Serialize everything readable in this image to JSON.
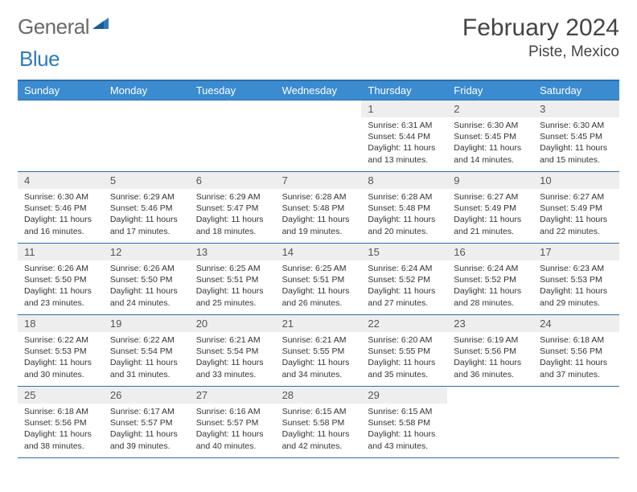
{
  "brand": {
    "part1": "General",
    "part2": "Blue"
  },
  "title": "February 2024",
  "location": "Piste, Mexico",
  "colors": {
    "header_bg": "#3b8bd0",
    "header_border": "#2d6ea8",
    "daynum_bg": "#eeeeee",
    "text": "#333333",
    "brand_gray": "#6a6a6a",
    "brand_blue": "#2d7bc0"
  },
  "day_names": [
    "Sunday",
    "Monday",
    "Tuesday",
    "Wednesday",
    "Thursday",
    "Friday",
    "Saturday"
  ],
  "weeks": [
    [
      {
        "n": "",
        "sr": "",
        "ss": "",
        "dl": ""
      },
      {
        "n": "",
        "sr": "",
        "ss": "",
        "dl": ""
      },
      {
        "n": "",
        "sr": "",
        "ss": "",
        "dl": ""
      },
      {
        "n": "",
        "sr": "",
        "ss": "",
        "dl": ""
      },
      {
        "n": "1",
        "sr": "Sunrise: 6:31 AM",
        "ss": "Sunset: 5:44 PM",
        "dl": "Daylight: 11 hours and 13 minutes."
      },
      {
        "n": "2",
        "sr": "Sunrise: 6:30 AM",
        "ss": "Sunset: 5:45 PM",
        "dl": "Daylight: 11 hours and 14 minutes."
      },
      {
        "n": "3",
        "sr": "Sunrise: 6:30 AM",
        "ss": "Sunset: 5:45 PM",
        "dl": "Daylight: 11 hours and 15 minutes."
      }
    ],
    [
      {
        "n": "4",
        "sr": "Sunrise: 6:30 AM",
        "ss": "Sunset: 5:46 PM",
        "dl": "Daylight: 11 hours and 16 minutes."
      },
      {
        "n": "5",
        "sr": "Sunrise: 6:29 AM",
        "ss": "Sunset: 5:46 PM",
        "dl": "Daylight: 11 hours and 17 minutes."
      },
      {
        "n": "6",
        "sr": "Sunrise: 6:29 AM",
        "ss": "Sunset: 5:47 PM",
        "dl": "Daylight: 11 hours and 18 minutes."
      },
      {
        "n": "7",
        "sr": "Sunrise: 6:28 AM",
        "ss": "Sunset: 5:48 PM",
        "dl": "Daylight: 11 hours and 19 minutes."
      },
      {
        "n": "8",
        "sr": "Sunrise: 6:28 AM",
        "ss": "Sunset: 5:48 PM",
        "dl": "Daylight: 11 hours and 20 minutes."
      },
      {
        "n": "9",
        "sr": "Sunrise: 6:27 AM",
        "ss": "Sunset: 5:49 PM",
        "dl": "Daylight: 11 hours and 21 minutes."
      },
      {
        "n": "10",
        "sr": "Sunrise: 6:27 AM",
        "ss": "Sunset: 5:49 PM",
        "dl": "Daylight: 11 hours and 22 minutes."
      }
    ],
    [
      {
        "n": "11",
        "sr": "Sunrise: 6:26 AM",
        "ss": "Sunset: 5:50 PM",
        "dl": "Daylight: 11 hours and 23 minutes."
      },
      {
        "n": "12",
        "sr": "Sunrise: 6:26 AM",
        "ss": "Sunset: 5:50 PM",
        "dl": "Daylight: 11 hours and 24 minutes."
      },
      {
        "n": "13",
        "sr": "Sunrise: 6:25 AM",
        "ss": "Sunset: 5:51 PM",
        "dl": "Daylight: 11 hours and 25 minutes."
      },
      {
        "n": "14",
        "sr": "Sunrise: 6:25 AM",
        "ss": "Sunset: 5:51 PM",
        "dl": "Daylight: 11 hours and 26 minutes."
      },
      {
        "n": "15",
        "sr": "Sunrise: 6:24 AM",
        "ss": "Sunset: 5:52 PM",
        "dl": "Daylight: 11 hours and 27 minutes."
      },
      {
        "n": "16",
        "sr": "Sunrise: 6:24 AM",
        "ss": "Sunset: 5:52 PM",
        "dl": "Daylight: 11 hours and 28 minutes."
      },
      {
        "n": "17",
        "sr": "Sunrise: 6:23 AM",
        "ss": "Sunset: 5:53 PM",
        "dl": "Daylight: 11 hours and 29 minutes."
      }
    ],
    [
      {
        "n": "18",
        "sr": "Sunrise: 6:22 AM",
        "ss": "Sunset: 5:53 PM",
        "dl": "Daylight: 11 hours and 30 minutes."
      },
      {
        "n": "19",
        "sr": "Sunrise: 6:22 AM",
        "ss": "Sunset: 5:54 PM",
        "dl": "Daylight: 11 hours and 31 minutes."
      },
      {
        "n": "20",
        "sr": "Sunrise: 6:21 AM",
        "ss": "Sunset: 5:54 PM",
        "dl": "Daylight: 11 hours and 33 minutes."
      },
      {
        "n": "21",
        "sr": "Sunrise: 6:21 AM",
        "ss": "Sunset: 5:55 PM",
        "dl": "Daylight: 11 hours and 34 minutes."
      },
      {
        "n": "22",
        "sr": "Sunrise: 6:20 AM",
        "ss": "Sunset: 5:55 PM",
        "dl": "Daylight: 11 hours and 35 minutes."
      },
      {
        "n": "23",
        "sr": "Sunrise: 6:19 AM",
        "ss": "Sunset: 5:56 PM",
        "dl": "Daylight: 11 hours and 36 minutes."
      },
      {
        "n": "24",
        "sr": "Sunrise: 6:18 AM",
        "ss": "Sunset: 5:56 PM",
        "dl": "Daylight: 11 hours and 37 minutes."
      }
    ],
    [
      {
        "n": "25",
        "sr": "Sunrise: 6:18 AM",
        "ss": "Sunset: 5:56 PM",
        "dl": "Daylight: 11 hours and 38 minutes."
      },
      {
        "n": "26",
        "sr": "Sunrise: 6:17 AM",
        "ss": "Sunset: 5:57 PM",
        "dl": "Daylight: 11 hours and 39 minutes."
      },
      {
        "n": "27",
        "sr": "Sunrise: 6:16 AM",
        "ss": "Sunset: 5:57 PM",
        "dl": "Daylight: 11 hours and 40 minutes."
      },
      {
        "n": "28",
        "sr": "Sunrise: 6:15 AM",
        "ss": "Sunset: 5:58 PM",
        "dl": "Daylight: 11 hours and 42 minutes."
      },
      {
        "n": "29",
        "sr": "Sunrise: 6:15 AM",
        "ss": "Sunset: 5:58 PM",
        "dl": "Daylight: 11 hours and 43 minutes."
      },
      {
        "n": "",
        "sr": "",
        "ss": "",
        "dl": ""
      },
      {
        "n": "",
        "sr": "",
        "ss": "",
        "dl": ""
      }
    ]
  ]
}
